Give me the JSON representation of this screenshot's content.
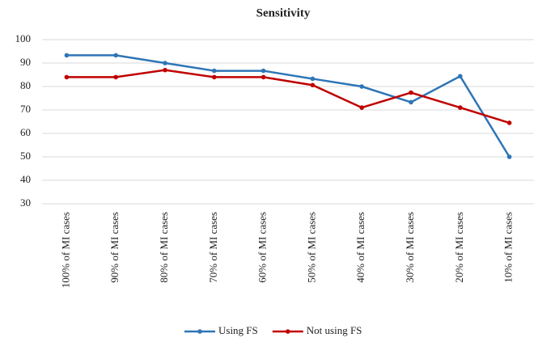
{
  "chart_data": {
    "type": "line",
    "title": "Sensitivity",
    "categories": [
      "100% of MI cases",
      "90% of MI cases",
      "80% of MI cases",
      "70% of MI cases",
      "60% of MI cases",
      "50% of MI cases",
      "40% of MI cases",
      "30% of MI cases",
      "20% of MI cases",
      "10% of MI cases"
    ],
    "series": [
      {
        "name": "Using FS",
        "color": "#2e75b6",
        "values": [
          93.3,
          93.3,
          90,
          86.7,
          86.7,
          83.3,
          80,
          73.3,
          84.4,
          50
        ]
      },
      {
        "name": "Not using FS",
        "color": "#c00000",
        "values": [
          84,
          84,
          87,
          84,
          84,
          80.6,
          71,
          77.4,
          71,
          64.5
        ]
      }
    ],
    "ylim": [
      30,
      100
    ],
    "yticks": [
      30,
      40,
      50,
      60,
      70,
      80,
      90,
      100
    ],
    "grid": true,
    "legend": "bottom"
  }
}
